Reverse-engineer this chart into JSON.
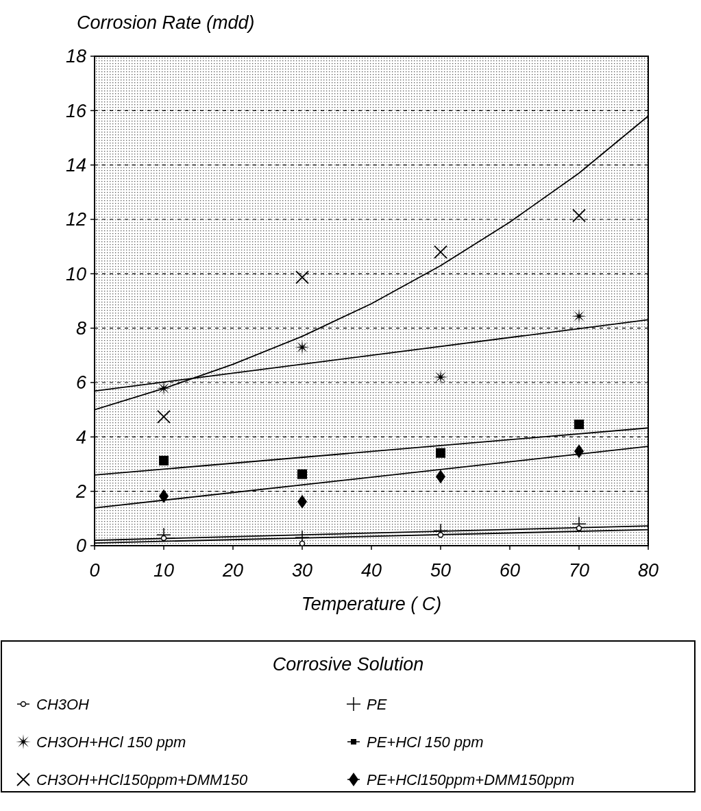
{
  "chart_data": {
    "type": "scatter",
    "ylabel": "Corrosion Rate (mdd)",
    "xlabel": "Temperature ( C)",
    "legend_title": "Corrosive Solution",
    "legend": "bottom",
    "grid": "y",
    "xlim": [
      0,
      80
    ],
    "xticks": [
      0,
      10,
      20,
      30,
      40,
      50,
      60,
      70,
      80
    ],
    "ylim": [
      0,
      18
    ],
    "yticks": [
      0,
      2,
      4,
      6,
      8,
      10,
      12,
      14,
      16,
      18
    ],
    "series": [
      {
        "name": "CH3OH",
        "color": "#000000",
        "marker": "circle",
        "x": [
          10,
          30,
          50,
          70
        ],
        "values": [
          0.28,
          0.08,
          0.4,
          0.64
        ]
      },
      {
        "name": "PE",
        "color": "#000000",
        "marker": "cross",
        "x": [
          10,
          30,
          50,
          70
        ],
        "values": [
          0.4,
          0.3,
          0.55,
          0.8
        ]
      },
      {
        "name": "CH3OH+HCl 150 ppm",
        "color": "#000000",
        "marker": "star",
        "x": [
          10,
          30,
          50,
          70
        ],
        "values": [
          5.79,
          7.3,
          6.2,
          8.44
        ]
      },
      {
        "name": "PE+HCl 150 ppm",
        "color": "#000000",
        "marker": "square",
        "x": [
          10,
          30,
          50,
          70
        ],
        "values": [
          3.13,
          2.63,
          3.41,
          4.46
        ]
      },
      {
        "name": "CH3OH+HCl150ppm+DMM150",
        "color": "#000000",
        "marker": "x",
        "x": [
          10,
          30,
          50,
          70
        ],
        "values": [
          4.74,
          9.87,
          10.8,
          12.14
        ]
      },
      {
        "name": "PE+HCl150ppm+DMM150ppm",
        "color": "#000000",
        "marker": "diamond",
        "x": [
          10,
          30,
          50,
          70
        ],
        "values": [
          1.82,
          1.62,
          2.54,
          3.47
        ]
      },
      {
        "type": "line",
        "color": "#000000",
        "marker": "none",
        "x": [
          0,
          80
        ],
        "values": [
          0.1,
          0.59
        ]
      },
      {
        "type": "line",
        "color": "#000000",
        "marker": "none",
        "x": [
          0,
          80
        ],
        "values": [
          0.2,
          0.73
        ]
      },
      {
        "type": "line",
        "color": "#000000",
        "marker": "none",
        "x": [
          0,
          80
        ],
        "values": [
          5.69,
          8.31
        ]
      },
      {
        "type": "line",
        "color": "#000000",
        "marker": "none",
        "x": [
          0,
          80
        ],
        "values": [
          2.6,
          4.33
        ]
      },
      {
        "type": "line",
        "color": "#000000",
        "marker": "none",
        "x": [
          0,
          10,
          20,
          30,
          40,
          50,
          60,
          70,
          80
        ],
        "values": [
          5.0,
          5.78,
          6.67,
          7.7,
          8.9,
          10.3,
          11.9,
          13.7,
          15.8
        ]
      },
      {
        "type": "line",
        "color": "#000000",
        "marker": "none",
        "x": [
          0,
          80
        ],
        "values": [
          1.39,
          3.65
        ]
      }
    ]
  }
}
